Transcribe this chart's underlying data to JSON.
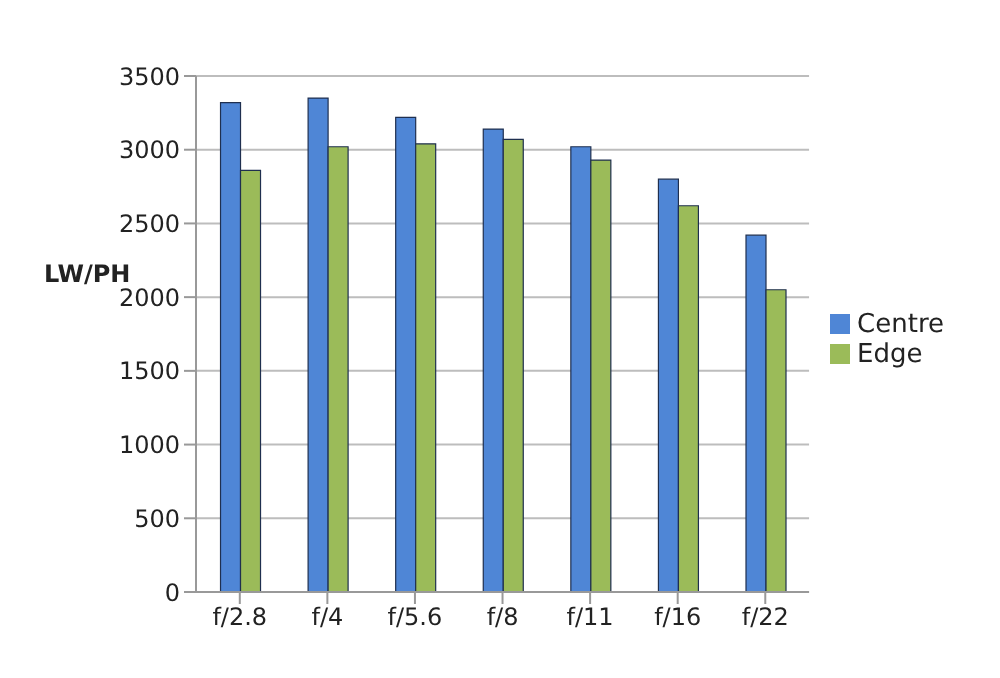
{
  "chart_data": {
    "type": "bar",
    "ylabel": "LW/PH",
    "categories": [
      "f/2.8",
      "f/4",
      "f/5.6",
      "f/8",
      "f/11",
      "f/16",
      "f/22"
    ],
    "series": [
      {
        "name": "Centre",
        "color": "#4f86d6",
        "values": [
          3320,
          3350,
          3220,
          3140,
          3020,
          2800,
          2420
        ]
      },
      {
        "name": "Edge",
        "color": "#9bbb59",
        "values": [
          2860,
          3020,
          3040,
          3070,
          2930,
          2620,
          2050
        ]
      }
    ],
    "ylim": [
      0,
      3500
    ],
    "yticks": [
      0,
      500,
      1000,
      1500,
      2000,
      2500,
      3000,
      3500
    ],
    "grid": "y",
    "legend": "right"
  }
}
